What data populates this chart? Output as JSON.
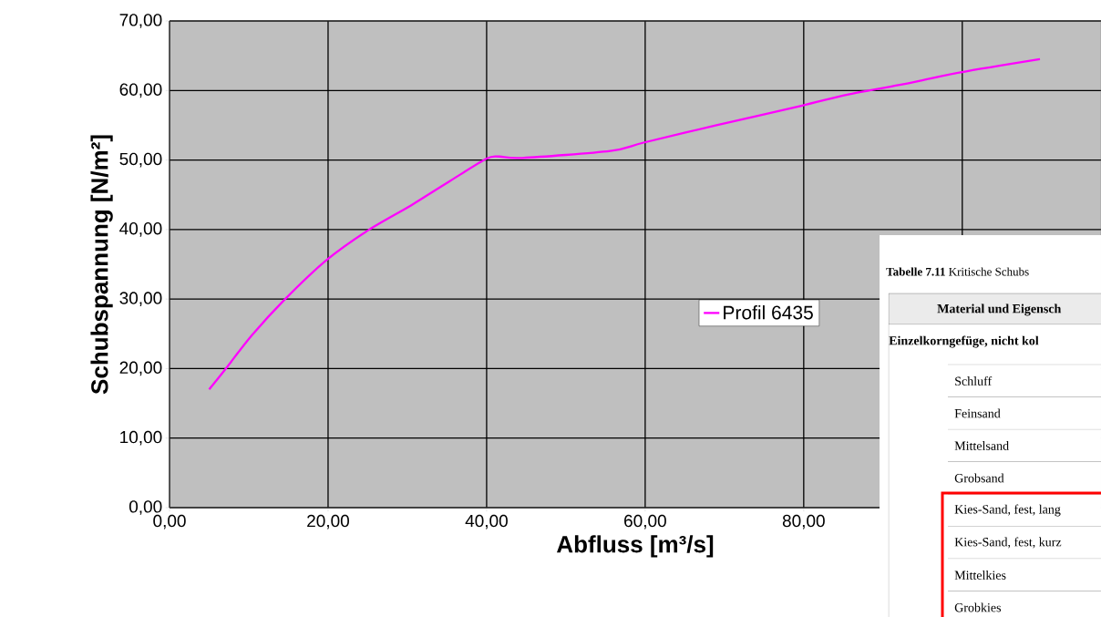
{
  "chart_data": {
    "type": "line",
    "xlabel": "Abfluss [m³/s]",
    "ylabel": "Schubspannung [N/m²]",
    "x": [
      5,
      7.1,
      10.4,
      14.5,
      19.8,
      25.2,
      30.5,
      35.4,
      40,
      41.6,
      44.5,
      55.6,
      59.8,
      69,
      79.7,
      85.5,
      92.1,
      99.8,
      109.8
    ],
    "series": [
      {
        "name": "Profil 6435",
        "color": "#ff00ff",
        "values": [
          17.0,
          20.0,
          24.8,
          29.9,
          35.6,
          40.0,
          43.5,
          47.0,
          50.2,
          50.5,
          50.3,
          51.3,
          52.5,
          55.0,
          57.8,
          59.4,
          60.8,
          62.6,
          64.5
        ]
      }
    ],
    "xlim": [
      0,
      117.5
    ],
    "ylim": [
      0,
      70
    ],
    "xticks": [
      {
        "value": 0,
        "label": "0,00"
      },
      {
        "value": 20,
        "label": "20,00"
      },
      {
        "value": 40,
        "label": "40,00"
      },
      {
        "value": 60,
        "label": "60,00"
      },
      {
        "value": 80,
        "label": "80,00"
      },
      {
        "value": 100,
        "label": null
      }
    ],
    "yticks": [
      {
        "value": 0,
        "label": "0,00"
      },
      {
        "value": 10,
        "label": "10,00"
      },
      {
        "value": 20,
        "label": "20,00"
      },
      {
        "value": 30,
        "label": "30,00"
      },
      {
        "value": 40,
        "label": "40,00"
      },
      {
        "value": 50,
        "label": "50,00"
      },
      {
        "value": 60,
        "label": "60,00"
      },
      {
        "value": 70,
        "label": "70,00"
      }
    ],
    "grid": true,
    "legend": "right",
    "marker": "none",
    "line_style": "solid",
    "annotations": [
      "**Tabelle 7.11** Kritische Schubs",
      "Material und Eigensch",
      "Einzelkorngefüge, nicht kol",
      "Schluff",
      "Feinsand",
      "Mittelsand",
      "Grobsand",
      "Kies-Sand, fest, lang",
      "Kies-Sand, fest, kurz",
      "Mittelkies",
      "Grobkies"
    ]
  }
}
